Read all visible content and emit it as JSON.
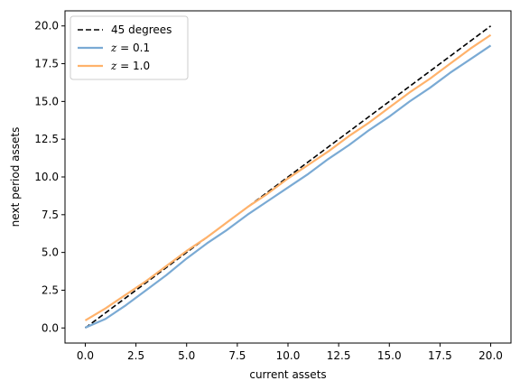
{
  "chart_data": {
    "type": "line",
    "title": "",
    "xlabel": "current assets",
    "ylabel": "next period assets",
    "xlim": [
      -1.0,
      21.0
    ],
    "ylim": [
      -1.0,
      21.0
    ],
    "xticks": [
      0.0,
      2.5,
      5.0,
      7.5,
      10.0,
      12.5,
      15.0,
      17.5,
      20.0
    ],
    "yticks": [
      0.0,
      2.5,
      5.0,
      7.5,
      10.0,
      12.5,
      15.0,
      17.5,
      20.0
    ],
    "xtick_labels": [
      "0.0",
      "2.5",
      "5.0",
      "7.5",
      "10.0",
      "12.5",
      "15.0",
      "17.5",
      "20.0"
    ],
    "ytick_labels": [
      "0.0",
      "2.5",
      "5.0",
      "7.5",
      "10.0",
      "12.5",
      "15.0",
      "17.5",
      "20.0"
    ],
    "grid": false,
    "legend_position": "top-left",
    "series": [
      {
        "name": "45 degrees",
        "color": "#000000",
        "style": "dashed",
        "x": [
          0,
          20
        ],
        "y": [
          0,
          20
        ]
      },
      {
        "name": "z = 0.1",
        "color": "#7aaad4",
        "style": "solid",
        "x": [
          0,
          1,
          2,
          3,
          4,
          5,
          6,
          7,
          8,
          9,
          10,
          11,
          12,
          13,
          14,
          15,
          16,
          17,
          18,
          19,
          20
        ],
        "y": [
          0.02,
          0.6,
          1.5,
          2.5,
          3.5,
          4.6,
          5.6,
          6.5,
          7.5,
          8.4,
          9.3,
          10.2,
          11.2,
          12.1,
          13.1,
          14.0,
          15.0,
          15.9,
          16.9,
          17.8,
          18.7
        ]
      },
      {
        "name": "z = 1.0",
        "color": "#ffb26b",
        "style": "solid",
        "x": [
          0,
          1,
          2,
          3,
          4,
          5,
          6,
          7,
          8,
          9,
          10,
          11,
          12,
          13,
          14,
          15,
          16,
          17,
          18,
          19,
          20
        ],
        "y": [
          0.5,
          1.3,
          2.2,
          3.1,
          4.1,
          5.1,
          6.0,
          7.0,
          8.0,
          8.9,
          9.9,
          10.8,
          11.7,
          12.7,
          13.6,
          14.6,
          15.6,
          16.5,
          17.5,
          18.5,
          19.4
        ]
      }
    ]
  }
}
